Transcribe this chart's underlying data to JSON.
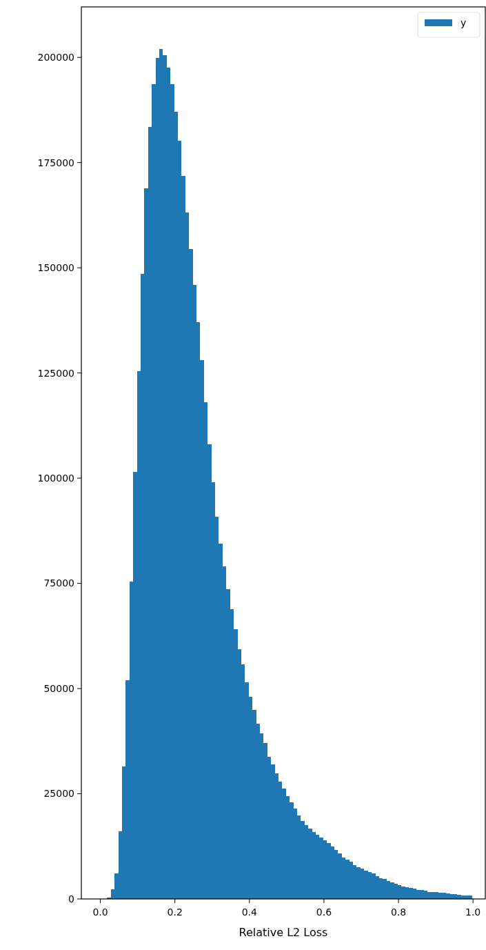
{
  "chart_data": {
    "type": "histogram",
    "xlabel": "Relative L2 Loss",
    "legend": "top right",
    "bins": [
      0.008,
      0.018,
      0.028,
      0.038,
      0.048,
      0.058,
      0.068,
      0.078,
      0.088,
      0.098,
      0.108,
      0.118,
      0.128,
      0.138,
      0.148,
      0.158,
      0.168,
      0.178,
      0.188,
      0.198,
      0.208,
      0.218,
      0.228,
      0.238,
      0.248,
      0.258,
      0.268,
      0.278,
      0.288,
      0.298,
      0.308,
      0.318,
      0.328,
      0.338,
      0.348,
      0.358,
      0.368,
      0.378,
      0.388,
      0.398,
      0.408,
      0.418,
      0.428,
      0.438,
      0.448,
      0.458,
      0.468,
      0.478,
      0.488,
      0.498,
      0.508,
      0.518,
      0.528,
      0.538,
      0.548,
      0.558,
      0.568,
      0.578,
      0.588,
      0.598,
      0.608,
      0.618,
      0.628,
      0.638,
      0.648,
      0.658,
      0.668,
      0.678,
      0.688,
      0.698,
      0.708,
      0.718,
      0.728,
      0.738,
      0.748,
      0.758,
      0.768,
      0.778,
      0.788,
      0.798,
      0.808,
      0.818,
      0.828,
      0.838,
      0.848,
      0.858,
      0.868,
      0.878,
      0.888,
      0.898,
      0.908,
      0.918,
      0.928,
      0.938,
      0.948,
      0.958,
      0.968,
      0.978,
      0.988,
      0.998
    ],
    "series": [
      {
        "name": "y",
        "color": "#1f77b4",
        "values": [
          0,
          300,
          2300,
          6000,
          16000,
          31500,
          52000,
          75500,
          101500,
          125500,
          148500,
          168800,
          183400,
          193700,
          199800,
          202000,
          200500,
          197500,
          193700,
          187000,
          180200,
          171800,
          163200,
          154400,
          145900,
          137000,
          128000,
          118000,
          108000,
          99000,
          90900,
          84400,
          79000,
          73600,
          68900,
          64100,
          59300,
          55800,
          51500,
          48000,
          45000,
          41600,
          39300,
          37000,
          33800,
          32000,
          29900,
          27900,
          26200,
          24400,
          23000,
          21400,
          19800,
          18600,
          17600,
          16700,
          15900,
          15200,
          14600,
          14000,
          13300,
          12500,
          11700,
          10800,
          9900,
          9300,
          8800,
          8100,
          7600,
          7200,
          6800,
          6400,
          6000,
          5400,
          5000,
          4800,
          4300,
          3900,
          3600,
          3300,
          3000,
          2800,
          2700,
          2400,
          2200,
          2100,
          1900,
          1700,
          1700,
          1600,
          1500,
          1400,
          1300,
          1200,
          1100,
          1000,
          900,
          900,
          800
        ]
      }
    ],
    "xlim": [
      -0.051,
      1.033
    ],
    "xticks": [
      {
        "value": 0,
        "label": "0.0"
      },
      {
        "value": 0.2,
        "label": "0.2"
      },
      {
        "value": 0.4,
        "label": "0.4"
      },
      {
        "value": 0.6,
        "label": "0.6"
      },
      {
        "value": 0.8,
        "label": "0.8"
      },
      {
        "value": 1,
        "label": "1.0"
      }
    ],
    "ylim": [
      0,
      212000
    ],
    "yticks": [
      0,
      25000,
      50000,
      75000,
      100000,
      125000,
      150000,
      175000,
      200000
    ]
  }
}
